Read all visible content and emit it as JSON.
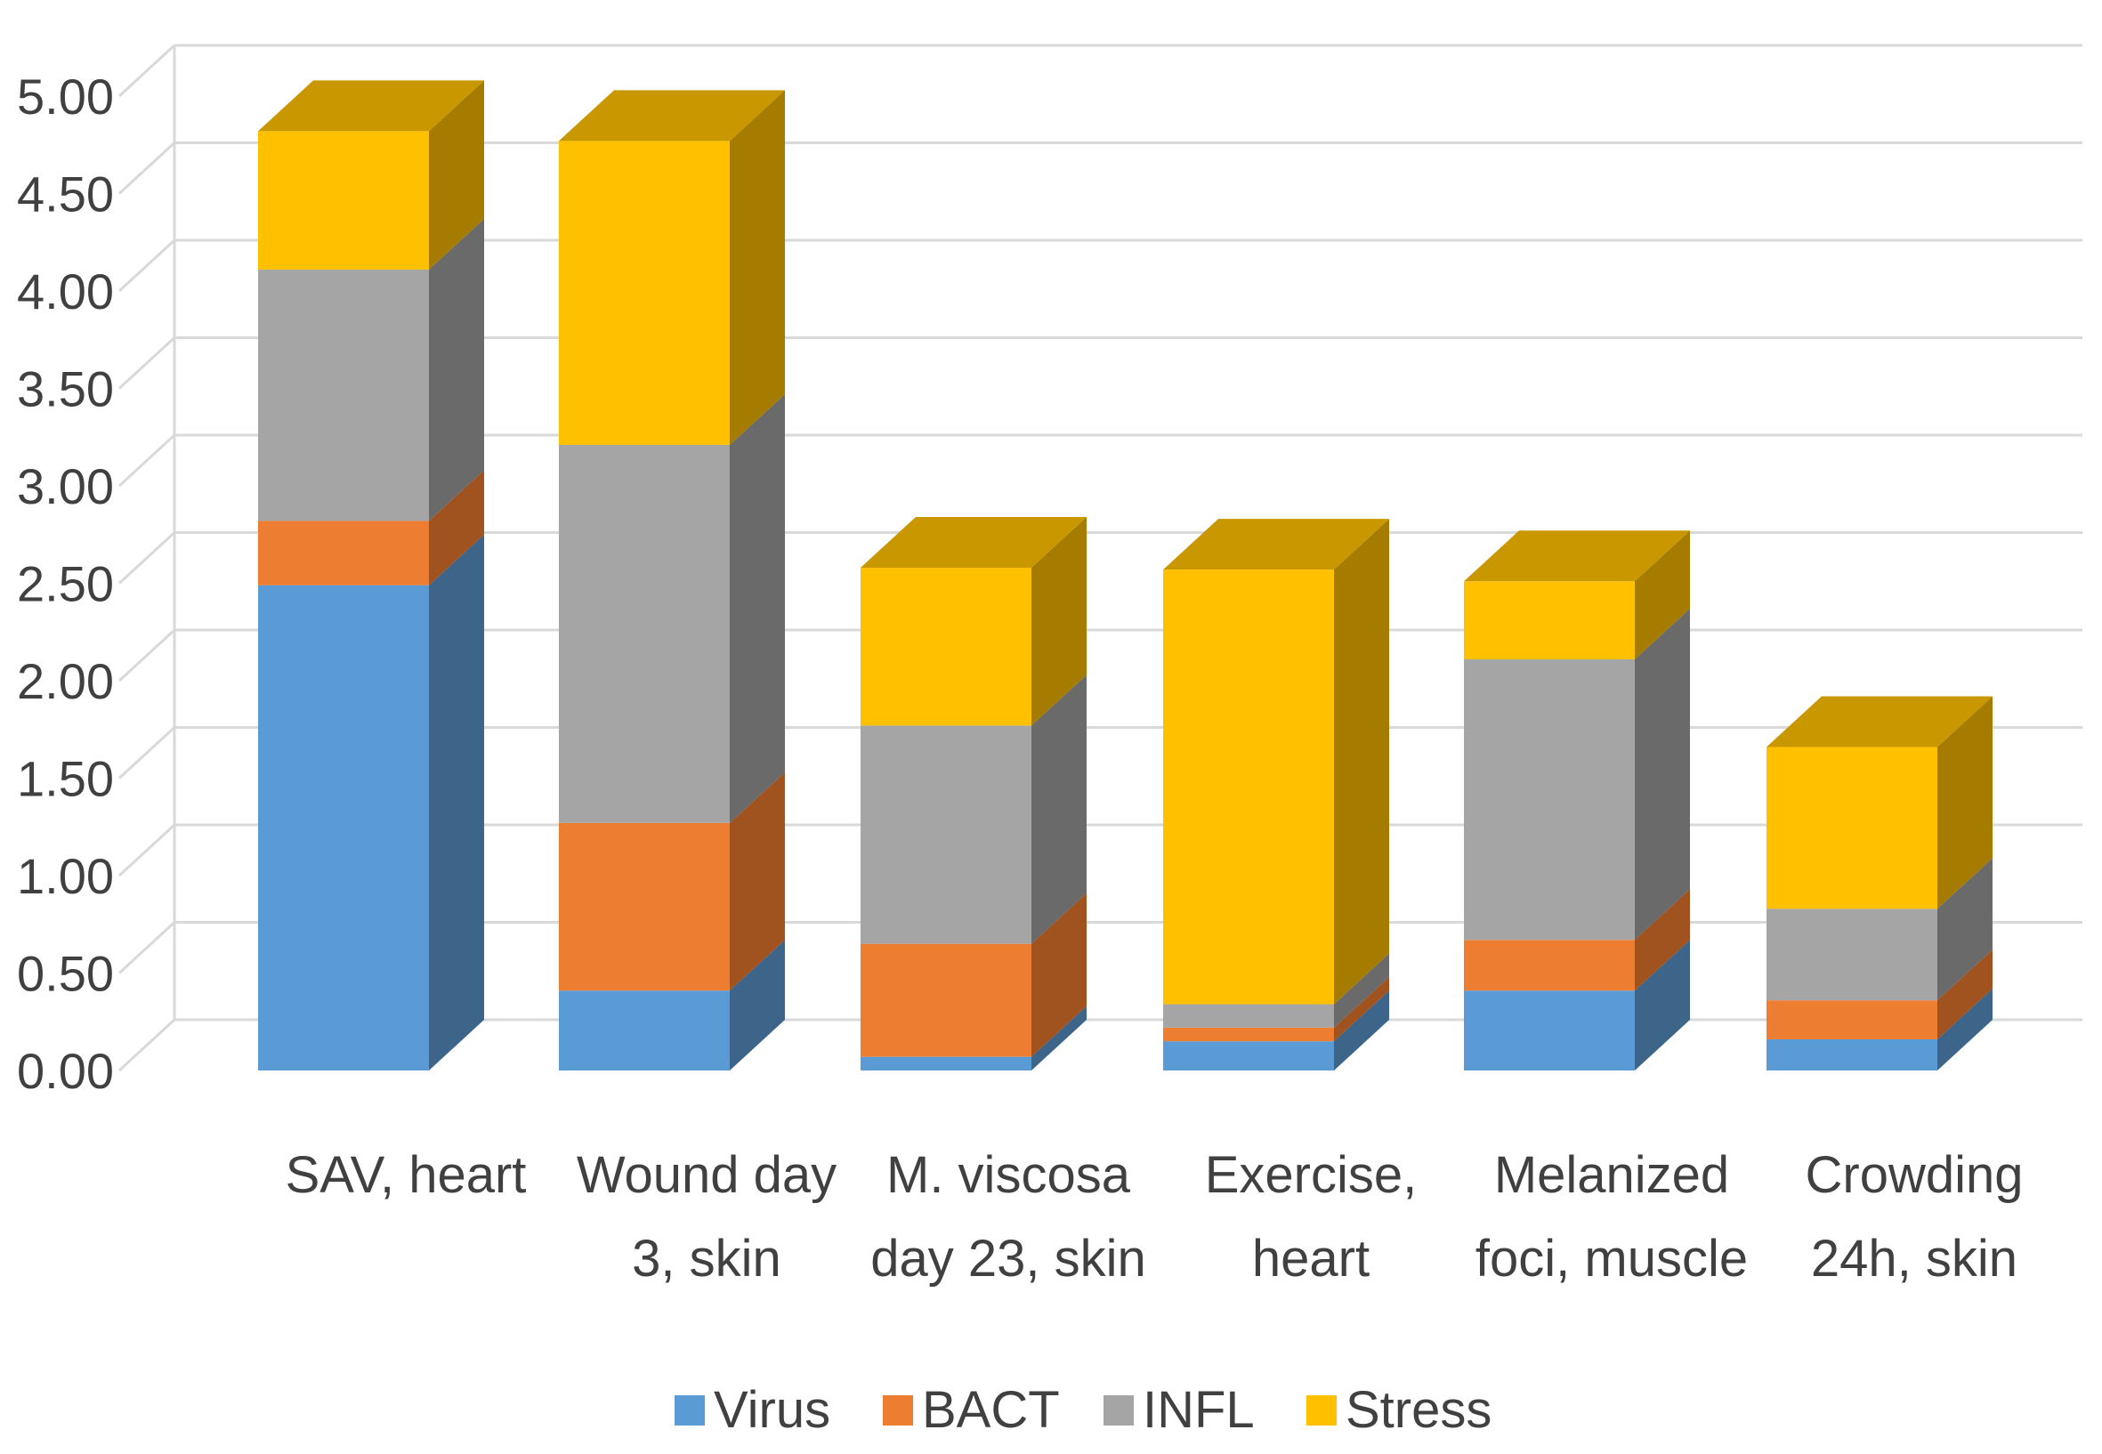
{
  "chart_data": {
    "type": "bar",
    "stacked": true,
    "style": "3d",
    "title": "",
    "xlabel": "",
    "ylabel": "",
    "ylim": [
      0,
      5
    ],
    "yticks": [
      "0.00",
      "0.50",
      "1.00",
      "1.50",
      "2.00",
      "2.50",
      "3.00",
      "3.50",
      "4.00",
      "4.50",
      "5.00"
    ],
    "grid": true,
    "legend_position": "bottom",
    "categories": [
      [
        "SAV, heart"
      ],
      [
        "Wound day",
        "3, skin"
      ],
      [
        "M. viscosa",
        "day 23, skin"
      ],
      [
        "Exercise,",
        "heart"
      ],
      [
        "Melanized",
        "foci, muscle"
      ],
      [
        "Crowding",
        "24h, skin"
      ]
    ],
    "series": [
      {
        "name": "Virus",
        "color": "#5B9BD5",
        "side": "#3C6589",
        "top": "#4A7FAD",
        "values": [
          2.49,
          0.41,
          0.07,
          0.15,
          0.41,
          0.16
        ]
      },
      {
        "name": "BACT",
        "color": "#ED7D31",
        "side": "#A0521F",
        "top": "#C96A28",
        "values": [
          0.33,
          0.86,
          0.58,
          0.07,
          0.26,
          0.2
        ]
      },
      {
        "name": "INFL",
        "color": "#A5A5A5",
        "side": "#6A6A6A",
        "top": "#8A8A8A",
        "values": [
          1.29,
          1.94,
          1.12,
          0.12,
          1.44,
          0.47
        ]
      },
      {
        "name": "Stress",
        "color": "#FFC000",
        "side": "#A67C00",
        "top": "#C99700",
        "values": [
          0.71,
          1.56,
          0.81,
          2.23,
          0.4,
          0.83
        ]
      }
    ]
  }
}
